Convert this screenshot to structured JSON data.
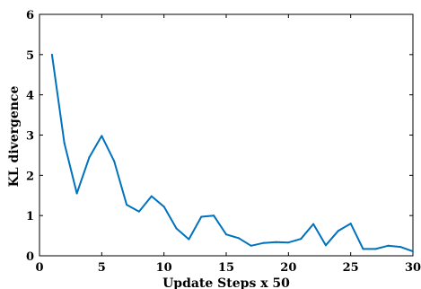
{
  "chart_data": {
    "type": "line",
    "title": "",
    "xlabel": "Update Steps x 50",
    "ylabel": "KL divergence",
    "xlim": [
      0,
      30
    ],
    "ylim": [
      0,
      6
    ],
    "xticks": [
      0,
      5,
      10,
      15,
      20,
      25,
      30
    ],
    "yticks": [
      0,
      1,
      2,
      3,
      4,
      5,
      6
    ],
    "grid": false,
    "series": [
      {
        "color": "#0072BD",
        "x": [
          1,
          2,
          3,
          4,
          5,
          6,
          7,
          8,
          9,
          10,
          11,
          12,
          13,
          14,
          15,
          16,
          17,
          18,
          19,
          20,
          21,
          22,
          23,
          24,
          25,
          26,
          27,
          28,
          29,
          30
        ],
        "y": [
          5.0,
          2.8,
          1.55,
          2.45,
          2.98,
          2.35,
          1.27,
          1.1,
          1.48,
          1.22,
          0.68,
          0.41,
          0.97,
          1.0,
          0.53,
          0.44,
          0.25,
          0.32,
          0.34,
          0.33,
          0.42,
          0.79,
          0.26,
          0.62,
          0.8,
          0.17,
          0.17,
          0.25,
          0.22,
          0.11
        ]
      }
    ]
  }
}
